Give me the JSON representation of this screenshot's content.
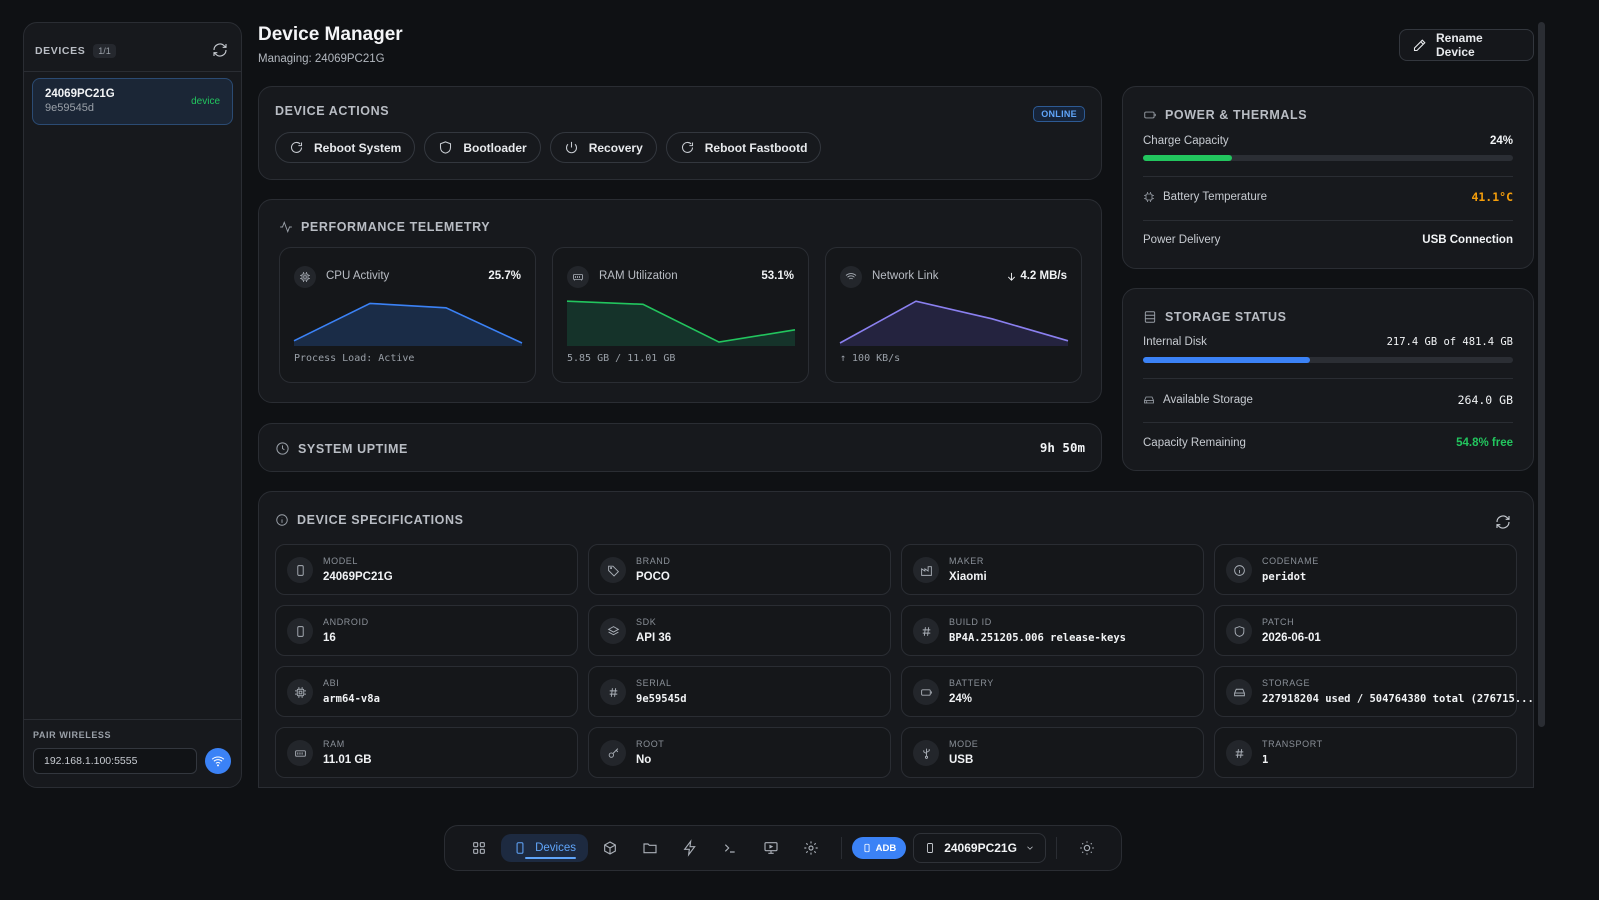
{
  "sidebar": {
    "title": "DEVICES",
    "count": "1/1",
    "devices": [
      {
        "name": "24069PC21G",
        "serial": "9e59545d",
        "state": "device"
      }
    ],
    "pair": {
      "label": "PAIR WIRELESS",
      "value": "192.168.1.100:5555"
    }
  },
  "header": {
    "title": "Device Manager",
    "managing": "Managing: 24069PC21G",
    "rename_label": "Rename Device"
  },
  "actions": {
    "title": "DEVICE ACTIONS",
    "status": "ONLINE",
    "buttons": [
      "Reboot System",
      "Bootloader",
      "Recovery",
      "Reboot Fastbootd"
    ]
  },
  "telemetry": {
    "title": "PERFORMANCE TELEMETRY",
    "tiles": [
      {
        "label": "CPU Activity",
        "value": "25.7%",
        "footer": "Process Load: Active",
        "color": "#3b82f6",
        "fill": "#1a2c47",
        "points": [
          0.05,
          0.9,
          0.8,
          0.0
        ]
      },
      {
        "label": "RAM Utilization",
        "value": "53.1%",
        "footer": "5.85 GB / 11.01 GB",
        "color": "#22c55e",
        "fill": "#15332a",
        "points": [
          0.95,
          0.88,
          0.02,
          0.3
        ]
      },
      {
        "label": "Network Link",
        "value": "4.2 MB/s",
        "footer": "↑ 100 KB/s",
        "color": "#8b80f0",
        "fill": "#24233f",
        "points": [
          0.0,
          0.95,
          0.55,
          0.05
        ]
      }
    ]
  },
  "uptime": {
    "title": "SYSTEM UPTIME",
    "value": "9h 50m"
  },
  "power": {
    "title": "POWER & THERMALS",
    "charge_label": "Charge Capacity",
    "charge_value": "24%",
    "charge_fraction": 0.24,
    "temp_label": "Battery Temperature",
    "temp_value": "41.1°C",
    "delivery_label": "Power Delivery",
    "delivery_value": "USB Connection"
  },
  "storage": {
    "title": "STORAGE STATUS",
    "disk_label": "Internal Disk",
    "disk_value": "217.4 GB of 481.4 GB",
    "disk_fraction": 0.45,
    "avail_label": "Available Storage",
    "avail_value": "264.0 GB",
    "remain_label": "Capacity Remaining",
    "remain_value": "54.8% free"
  },
  "specs": {
    "title": "DEVICE SPECIFICATIONS",
    "items": [
      {
        "key": "MODEL",
        "value": "24069PC21G",
        "icon": "phone-icon",
        "mono": false
      },
      {
        "key": "BRAND",
        "value": "POCO",
        "icon": "tag-icon",
        "mono": false
      },
      {
        "key": "MAKER",
        "value": "Xiaomi",
        "icon": "factory-icon",
        "mono": false
      },
      {
        "key": "CODENAME",
        "value": "peridot",
        "icon": "info-icon",
        "mono": true
      },
      {
        "key": "ANDROID",
        "value": "16",
        "icon": "phone-icon",
        "mono": false
      },
      {
        "key": "SDK",
        "value": "API 36",
        "icon": "layers-icon",
        "mono": false
      },
      {
        "key": "BUILD ID",
        "value": "BP4A.251205.006 release-keys",
        "icon": "hash-icon",
        "mono": true
      },
      {
        "key": "PATCH",
        "value": "2026-06-01",
        "icon": "shield-icon",
        "mono": false
      },
      {
        "key": "ABI",
        "value": "arm64-v8a",
        "icon": "cpu-icon",
        "mono": true
      },
      {
        "key": "SERIAL",
        "value": "9e59545d",
        "icon": "hash-icon",
        "mono": true
      },
      {
        "key": "BATTERY",
        "value": "24%",
        "icon": "battery-icon",
        "mono": false
      },
      {
        "key": "STORAGE",
        "value": "227918204 used / 504764380 total (276715...",
        "icon": "drive-icon",
        "mono": true
      },
      {
        "key": "RAM",
        "value": "11.01 GB",
        "icon": "memory-icon",
        "mono": false
      },
      {
        "key": "ROOT",
        "value": "No",
        "icon": "key-icon",
        "mono": false
      },
      {
        "key": "MODE",
        "value": "USB",
        "icon": "usb-icon",
        "mono": false
      },
      {
        "key": "TRANSPORT",
        "value": "1",
        "icon": "hash-icon",
        "mono": true
      }
    ]
  },
  "dock": {
    "devices_label": "Devices",
    "adb_label": "ADB",
    "device_selector": "24069PC21G"
  }
}
